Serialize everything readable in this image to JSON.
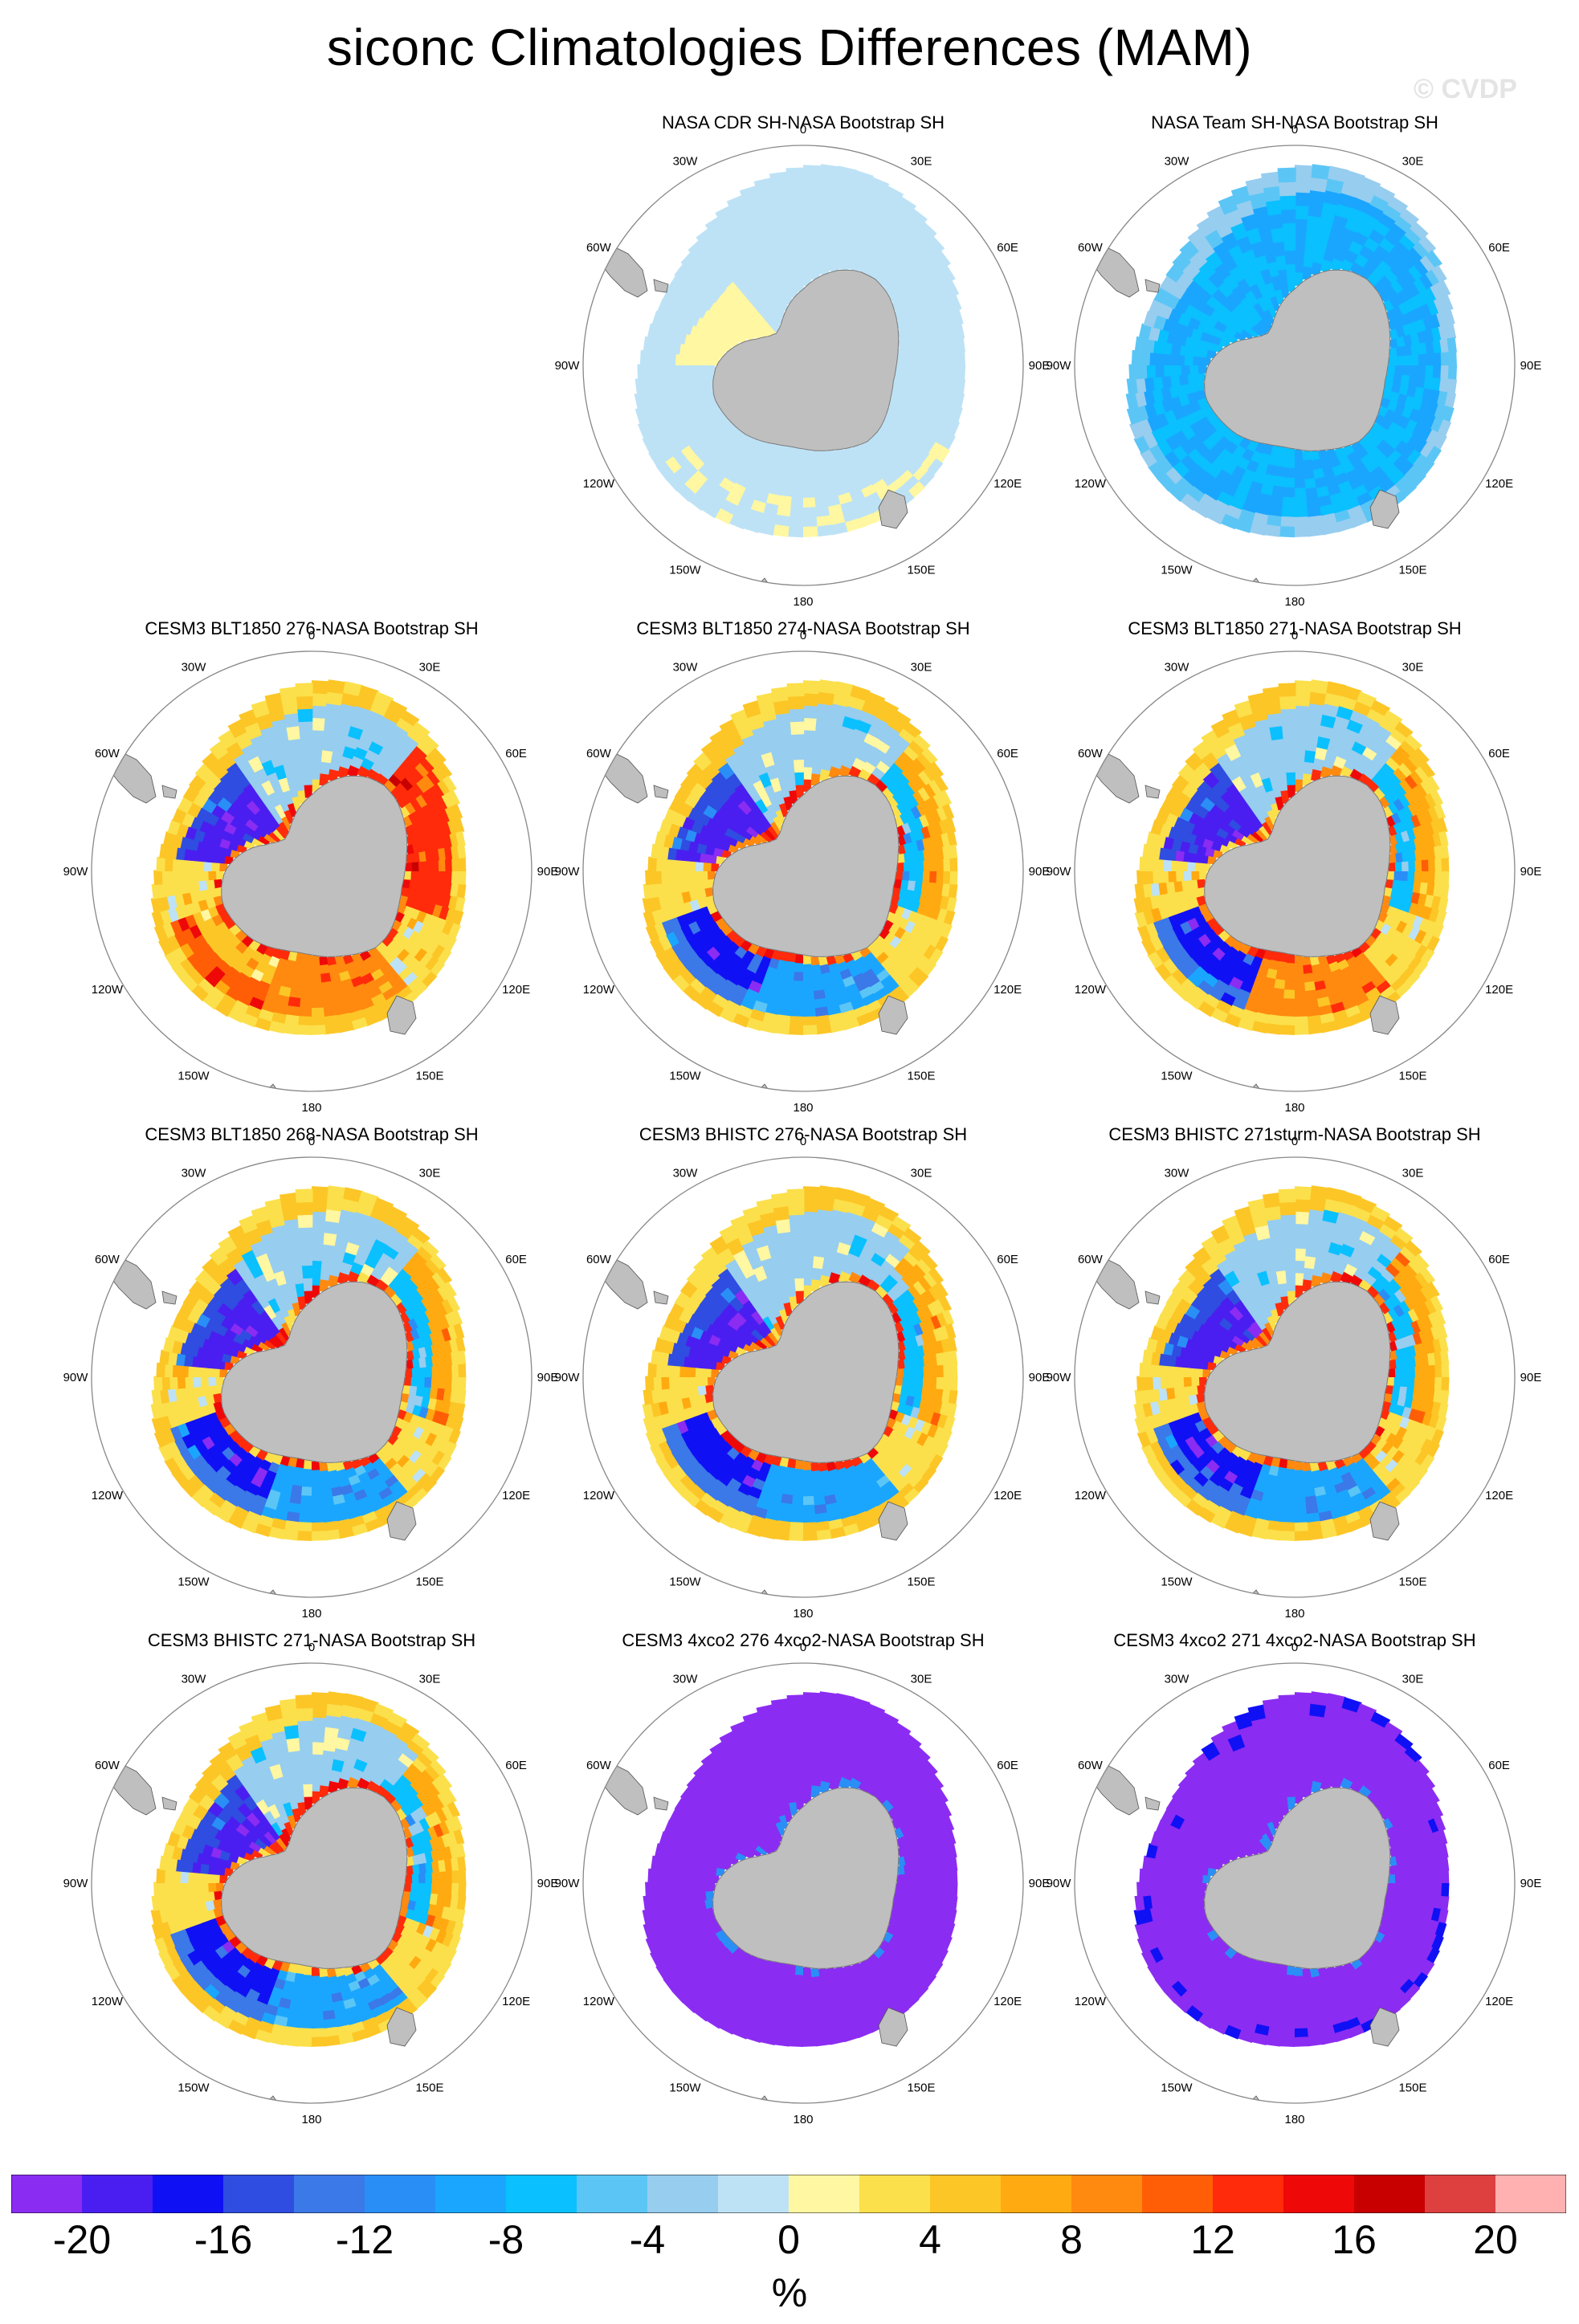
{
  "title": "siconc Climatologies Differences (MAM)",
  "watermark": "© CVDP",
  "lon_labels": [
    "0",
    "30E",
    "60E",
    "90E",
    "120E",
    "150E",
    "180",
    "150W",
    "120W",
    "90W",
    "60W",
    "30W"
  ],
  "panels": [
    {
      "title": "NASA CDR SH-NASA Bootstrap SH",
      "pattern": "cdr"
    },
    {
      "title": "NASA Team SH-NASA Bootstrap SH",
      "pattern": "team"
    },
    {
      "title": "CESM3 BLT1850 276-NASA Bootstrap SH",
      "pattern": "blt276"
    },
    {
      "title": "CESM3 BLT1850 274-NASA Bootstrap SH",
      "pattern": "blt274"
    },
    {
      "title": "CESM3 BLT1850 271-NASA Bootstrap SH",
      "pattern": "blt271"
    },
    {
      "title": "CESM3 BLT1850 268-NASA Bootstrap SH",
      "pattern": "blt268"
    },
    {
      "title": "CESM3 BHISTC 276-NASA Bootstrap SH",
      "pattern": "bhist276"
    },
    {
      "title": "CESM3 BHISTC 271sturm-NASA Bootstrap SH",
      "pattern": "bhist271s"
    },
    {
      "title": "CESM3 BHISTC 271-NASA Bootstrap SH",
      "pattern": "bhist271"
    },
    {
      "title": "CESM3 4xco2 276 4xco2-NASA Bootstrap SH",
      "pattern": "co2_276"
    },
    {
      "title": "CESM3 4xco2 271 4xco2-NASA Bootstrap SH",
      "pattern": "co2_271"
    }
  ],
  "colorbar": {
    "colors": [
      "#8b2cf2",
      "#4a1ef0",
      "#1010f5",
      "#2f4de0",
      "#3b78e8",
      "#2a8ef7",
      "#1aa6ff",
      "#0ac0ff",
      "#5bc6f5",
      "#97cdef",
      "#bde2f6",
      "#fff7a1",
      "#fbe04b",
      "#fcc627",
      "#ffaa10",
      "#ff8a0f",
      "#ff5e06",
      "#ff2b0a",
      "#ef0808",
      "#c80000",
      "#de4040",
      "#ffb0b0"
    ],
    "tick_labels": [
      "-20",
      "-16",
      "-12",
      "-8",
      "-4",
      "0",
      "4",
      "8",
      "12",
      "16",
      "20"
    ],
    "units": "%"
  },
  "chart_data": {
    "type": "heatmap",
    "variable": "siconc",
    "title": "siconc Climatologies Differences (MAM)",
    "projection": "south polar stereographic",
    "levels": [
      -20,
      -18,
      -16,
      -14,
      -12,
      -10,
      -8,
      -6,
      -4,
      -2,
      0,
      2,
      4,
      6,
      8,
      10,
      12,
      14,
      16,
      18,
      20
    ],
    "colorbar_ticks": [
      -20,
      -16,
      -12,
      -8,
      -4,
      0,
      4,
      8,
      12,
      16,
      20
    ],
    "units": "%",
    "panels": [
      "NASA CDR SH-NASA Bootstrap SH",
      "NASA Team SH-NASA Bootstrap SH",
      "CESM3 BLT1850 276-NASA Bootstrap SH",
      "CESM3 BLT1850 274-NASA Bootstrap SH",
      "CESM3 BLT1850 271-NASA Bootstrap SH",
      "CESM3 BLT1850 268-NASA Bootstrap SH",
      "CESM3 BHISTC 276-NASA Bootstrap SH",
      "CESM3 BHISTC 271sturm-NASA Bootstrap SH",
      "CESM3 BHISTC 271-NASA Bootstrap SH",
      "CESM3 4xco2 276 4xco2-NASA Bootstrap SH",
      "CESM3 4xco2 271 4xco2-NASA Bootstrap SH"
    ]
  }
}
